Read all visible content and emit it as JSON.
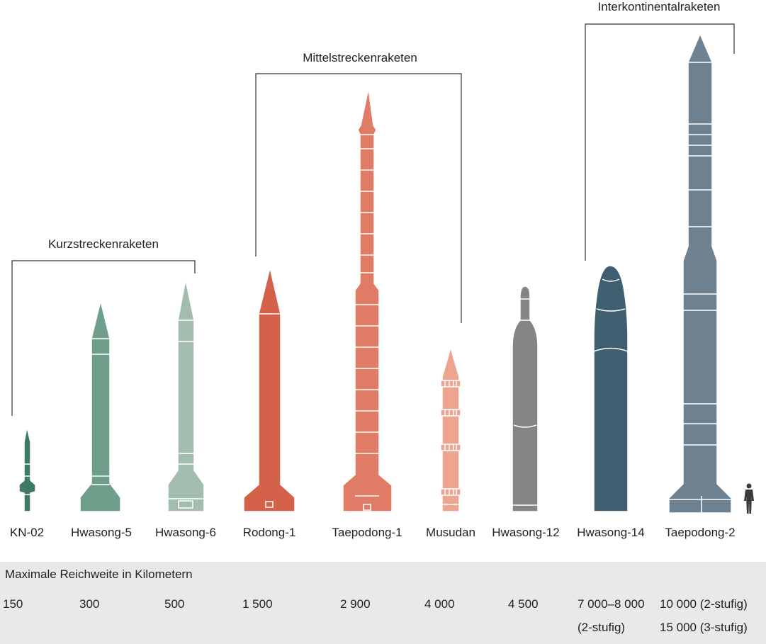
{
  "groups": [
    {
      "label": "Kurzstreckenraketen"
    },
    {
      "label": "Mittelstreckenraketen"
    },
    {
      "label": "Interkontinentalraketen"
    }
  ],
  "rockets": [
    {
      "name": "KN-02",
      "range": "150",
      "color": "#3f7a66"
    },
    {
      "name": "Hwasong-5",
      "range": "300",
      "color": "#6f9e8b"
    },
    {
      "name": "Hwasong-6",
      "range": "500",
      "color": "#a3bcb0"
    },
    {
      "name": "Rodong-1",
      "range": "1 500",
      "color": "#d4614a"
    },
    {
      "name": "Taepodong-1",
      "range": "2 900",
      "color": "#e07c66"
    },
    {
      "name": "Musudan",
      "range": "4 000",
      "color": "#eea590"
    },
    {
      "name": "Hwasong-12",
      "range": "4 500",
      "color": "#858585"
    },
    {
      "name": "Hwasong-14",
      "range": "7 000–8 000",
      "range_note": "(2-stufig)",
      "color": "#3f5e6f"
    },
    {
      "name": "Taepodong-2",
      "range": "10 000 (2-stufig)",
      "range_note": "15 000 (3-stufig)",
      "color": "#6d8190"
    }
  ],
  "range_title": "Maximale Reichweite in Kilometern",
  "icons": {
    "human": "human-figure-icon"
  },
  "colors": {
    "bracket": "#333333",
    "panel": "#e8e9ea",
    "human": "#3a3a3a"
  }
}
